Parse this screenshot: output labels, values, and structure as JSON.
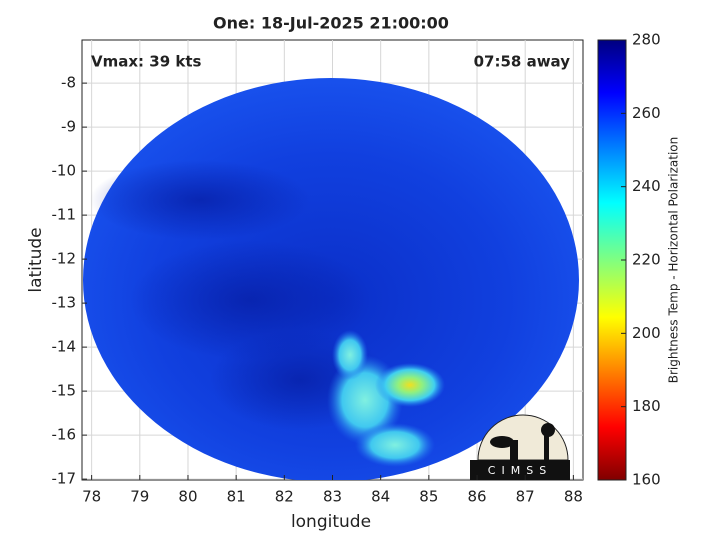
{
  "chart_data": {
    "type": "image",
    "title": "One: 18-Jul-2025 21:00:00",
    "annotations": [
      "Vmax: 39 kts",
      "07:58 away"
    ],
    "xlabel": "longitude",
    "ylabel": "latitude",
    "xlim": [
      77.8,
      88.2
    ],
    "xticks": [
      78,
      79,
      80,
      81,
      82,
      83,
      84,
      85,
      86,
      87,
      88
    ],
    "ylim": [
      -17.02,
      -7.02
    ],
    "yticks": [
      -8,
      -9,
      -10,
      -11,
      -12,
      -13,
      -14,
      -15,
      -16,
      -17
    ],
    "grid": true,
    "colorbar": {
      "label": "Brightness Temp - Horizontal Polarization",
      "colormap": "jet",
      "lim": [
        160,
        280
      ],
      "ticks": [
        160,
        180,
        200,
        220,
        240,
        260,
        280
      ]
    },
    "logo": "CIMSS"
  }
}
